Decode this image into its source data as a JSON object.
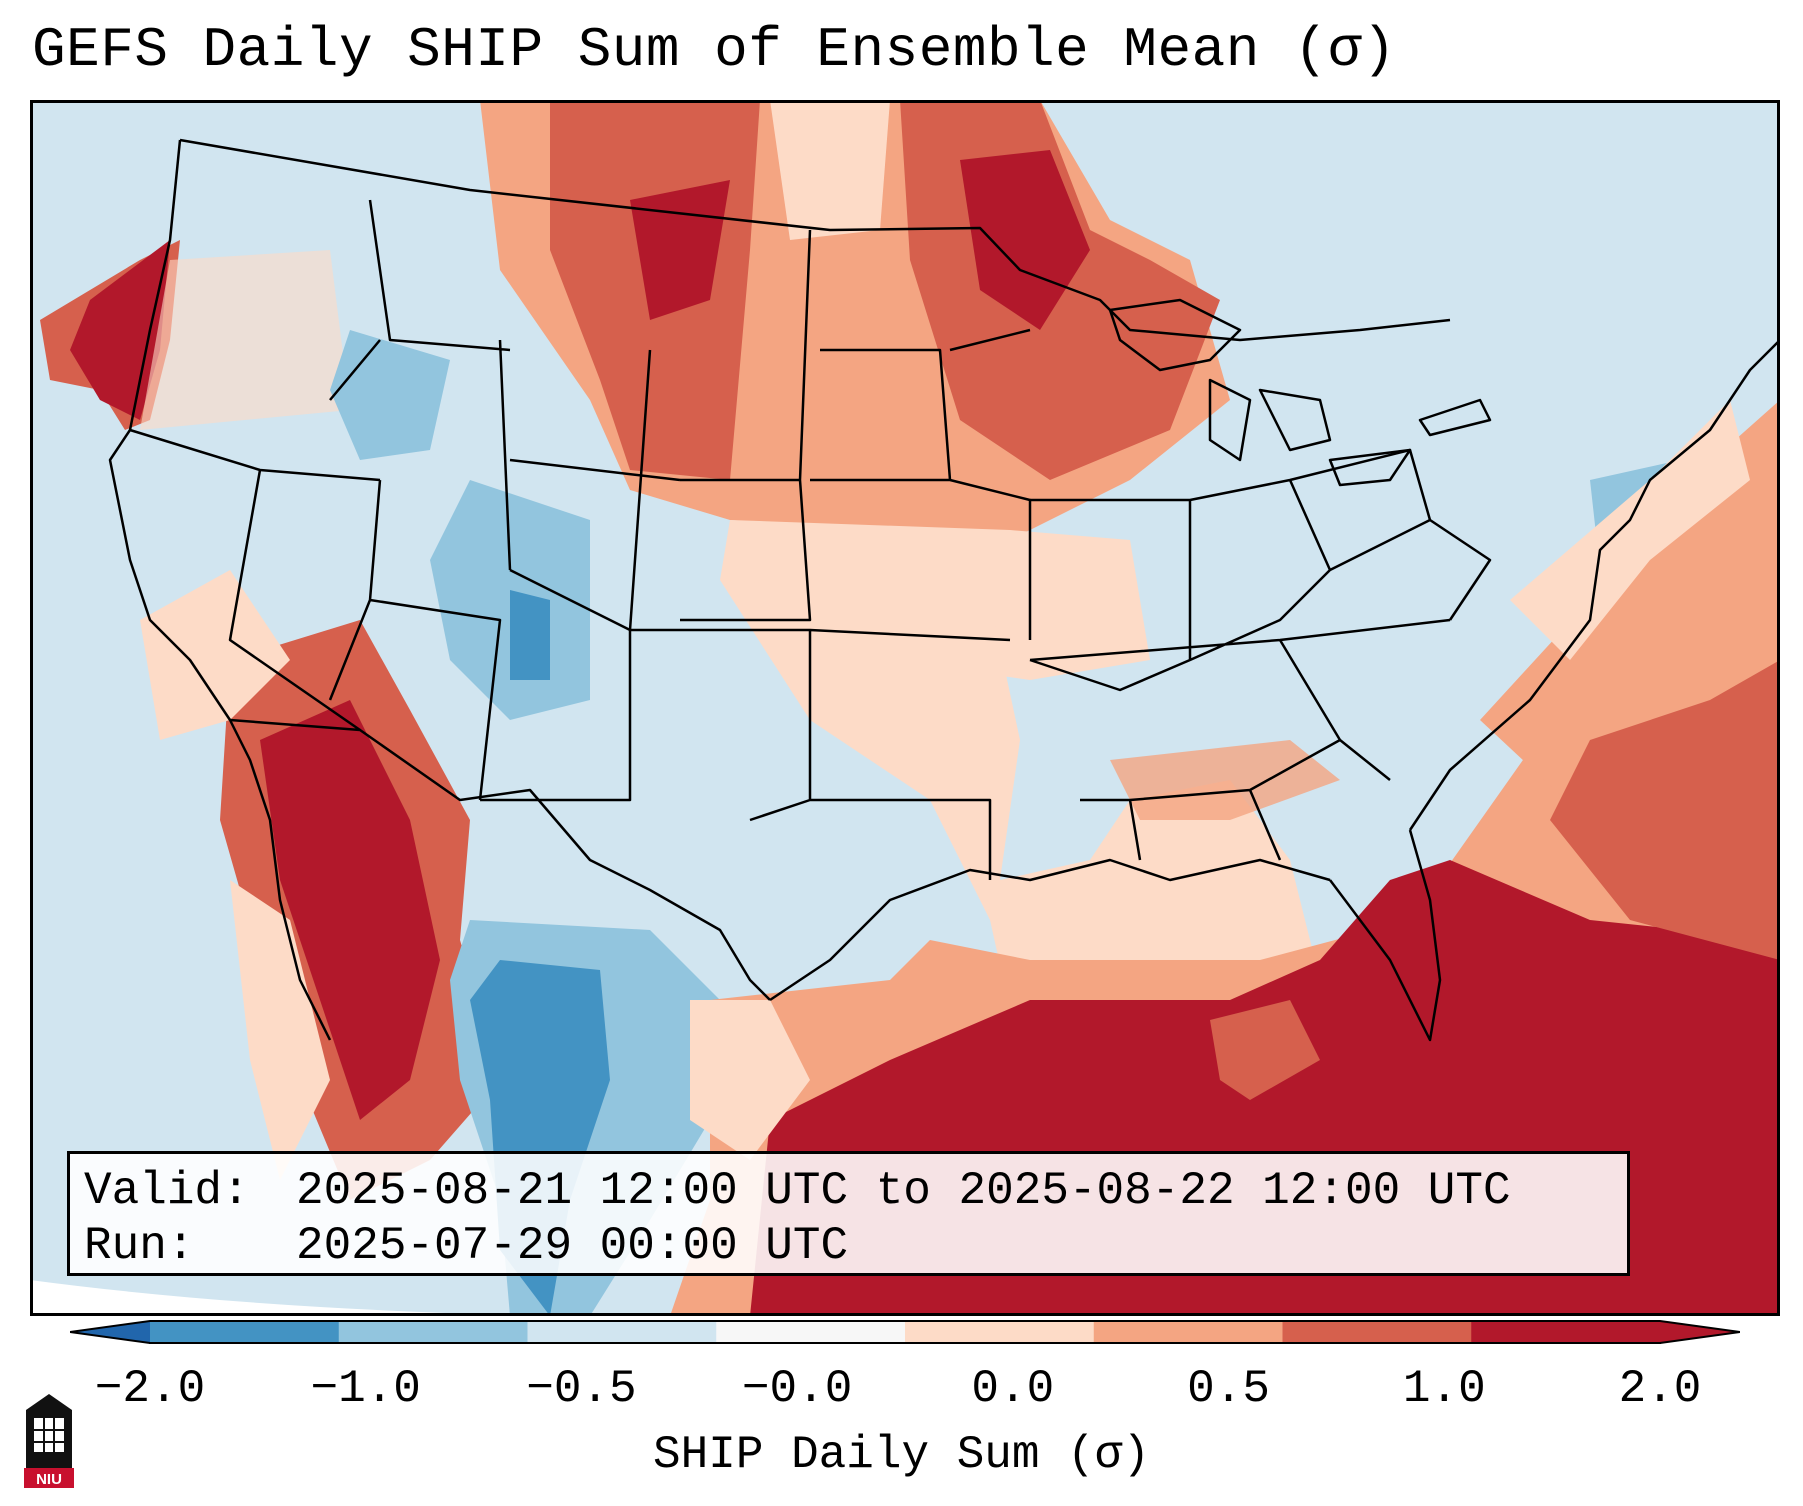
{
  "title": "GEFS Daily SHIP Sum of Ensemble Mean (σ)",
  "info": {
    "valid_label": "Valid:",
    "valid_value": "2025-08-21 12:00 UTC to 2025-08-22 12:00 UTC",
    "run_label": "Run:",
    "run_value": "2025-07-29 00:00 UTC"
  },
  "colorbar": {
    "label": "SHIP Daily Sum (σ)",
    "ticks": [
      "−2.0",
      "−1.0",
      "−0.5",
      "−0.0",
      "0.0",
      "0.5",
      "1.0",
      "2.0"
    ],
    "colors": [
      "#4393c3",
      "#92c5de",
      "#d1e5f0",
      "#f7f7f7",
      "#fddbc7",
      "#f4a582",
      "#d6604d",
      "#b2182b"
    ],
    "extend_low_color": "#2166ac",
    "extend_high_color": "#b2182b"
  },
  "map": {
    "base_color": "#d1e5f0",
    "outside_color": "#ffffff",
    "border_color": "#000000"
  },
  "logo": {
    "text": "NIU",
    "color": "#c8102e"
  }
}
